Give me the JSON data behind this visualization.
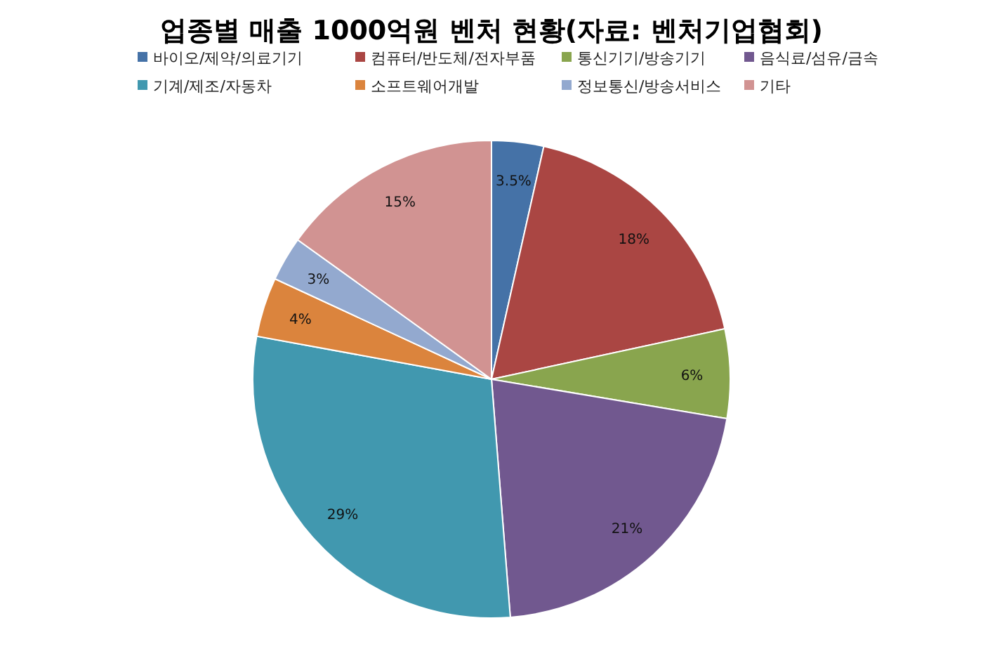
{
  "chart_data": {
    "type": "pie",
    "title": "업종별 매출 1000억원 벤처 현황(자료: 벤처기업협회)",
    "categories": [
      "바이오/제약/의료기기",
      "컴퓨터/반도체/전자부품",
      "통신기기/방송기기",
      "음식료/섬유/금속",
      "기계/제조/자동차",
      "소프트웨어개발",
      "정보통신/방송서비스",
      "기타"
    ],
    "values": [
      3.5,
      18,
      6,
      21,
      29,
      4,
      3,
      15
    ],
    "value_labels": [
      "3.5%",
      "18%",
      "6%",
      "21%",
      "29%",
      "4%",
      "3%",
      "15%"
    ],
    "colors": [
      "#4572a7",
      "#aa4643",
      "#89a54e",
      "#71588f",
      "#4198af",
      "#db843d",
      "#93a9cf",
      "#d19392"
    ],
    "legend": "top"
  }
}
